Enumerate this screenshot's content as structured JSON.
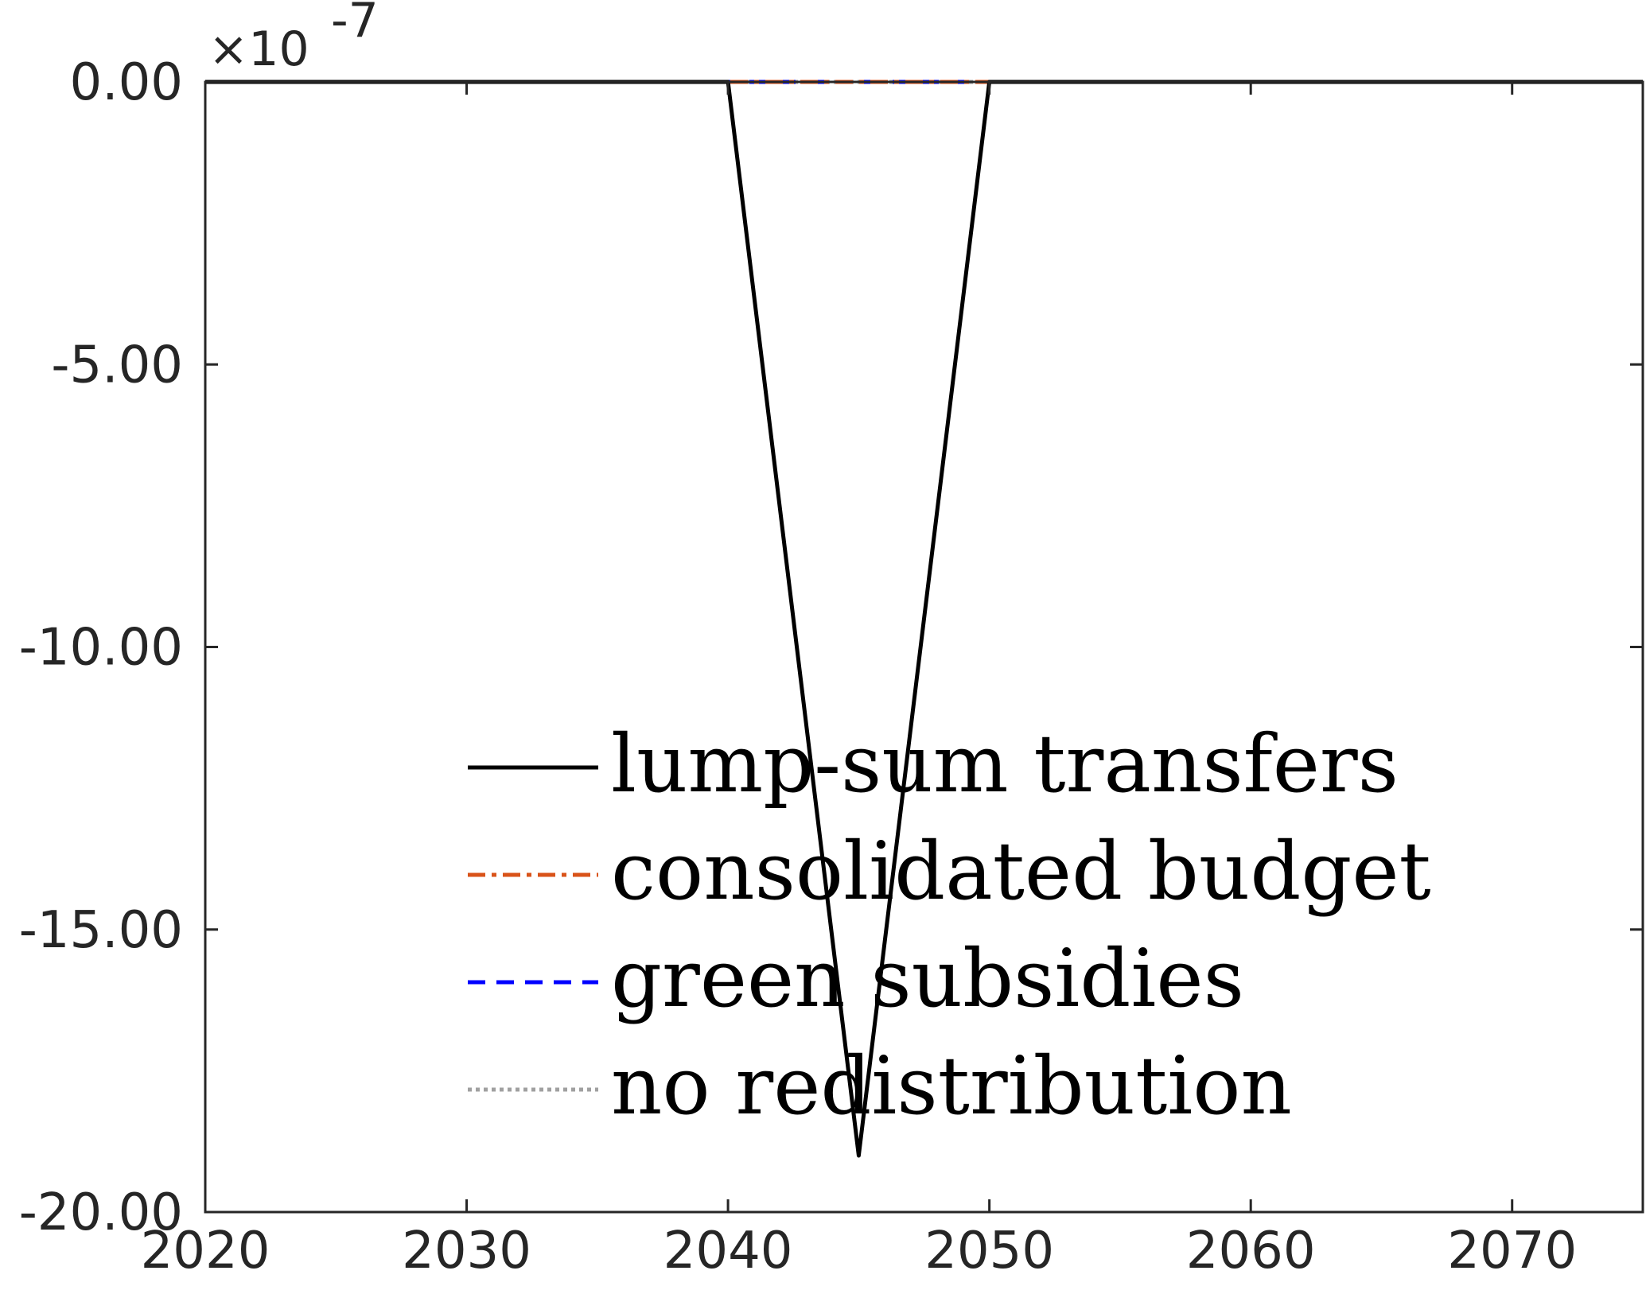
{
  "chart_data": {
    "type": "line",
    "title": "",
    "xlabel": "",
    "ylabel": "",
    "y_multiplier_label": {
      "times": "×10",
      "exponent": "-7"
    },
    "xlim": [
      2020,
      2075
    ],
    "ylim": [
      -20,
      0
    ],
    "xticks": [
      2020,
      2030,
      2040,
      2050,
      2060,
      2070
    ],
    "xtick_labels": [
      "2020",
      "2030",
      "2040",
      "2050",
      "2060",
      "2070"
    ],
    "yticks": [
      0,
      -5,
      -10,
      -15,
      -20
    ],
    "ytick_labels": [
      "0.00",
      "-5.00",
      "-10.00",
      "-15.00",
      "-20.00"
    ],
    "grid": false,
    "legend_position": "bottom-center",
    "series": [
      {
        "name": "lump-sum transfers",
        "color": "#000000",
        "style": "solid",
        "x": [
          2020,
          2025,
          2030,
          2035,
          2040,
          2045,
          2050,
          2055,
          2060,
          2065,
          2070,
          2075
        ],
        "y": [
          0,
          0,
          0,
          0,
          0,
          -19,
          0,
          0,
          0,
          0,
          0,
          0
        ]
      },
      {
        "name": "consolidated budget",
        "color": "#D95319",
        "style": "dashdot",
        "x": [
          2020,
          2025,
          2030,
          2035,
          2040,
          2045,
          2050,
          2055,
          2060,
          2065,
          2070,
          2075
        ],
        "y": [
          0,
          0,
          0,
          0,
          0,
          0,
          0,
          0,
          0,
          0,
          0,
          0
        ]
      },
      {
        "name": "green subsidies",
        "color": "#0000FF",
        "style": "dashed",
        "x": [
          2020,
          2025,
          2030,
          2035,
          2040,
          2045,
          2050,
          2055,
          2060,
          2065,
          2070,
          2075
        ],
        "y": [
          0,
          0,
          0,
          0,
          0,
          0,
          0,
          0,
          0,
          0,
          0,
          0
        ]
      },
      {
        "name": "no redistribution",
        "color": "#A0A0A0",
        "style": "dotted",
        "x": [
          2020,
          2025,
          2030,
          2035,
          2040,
          2045,
          2050,
          2055,
          2060,
          2065,
          2070,
          2075
        ],
        "y": [
          0,
          0,
          0,
          0,
          0,
          0,
          0,
          0,
          0,
          0,
          0,
          0
        ]
      }
    ]
  }
}
